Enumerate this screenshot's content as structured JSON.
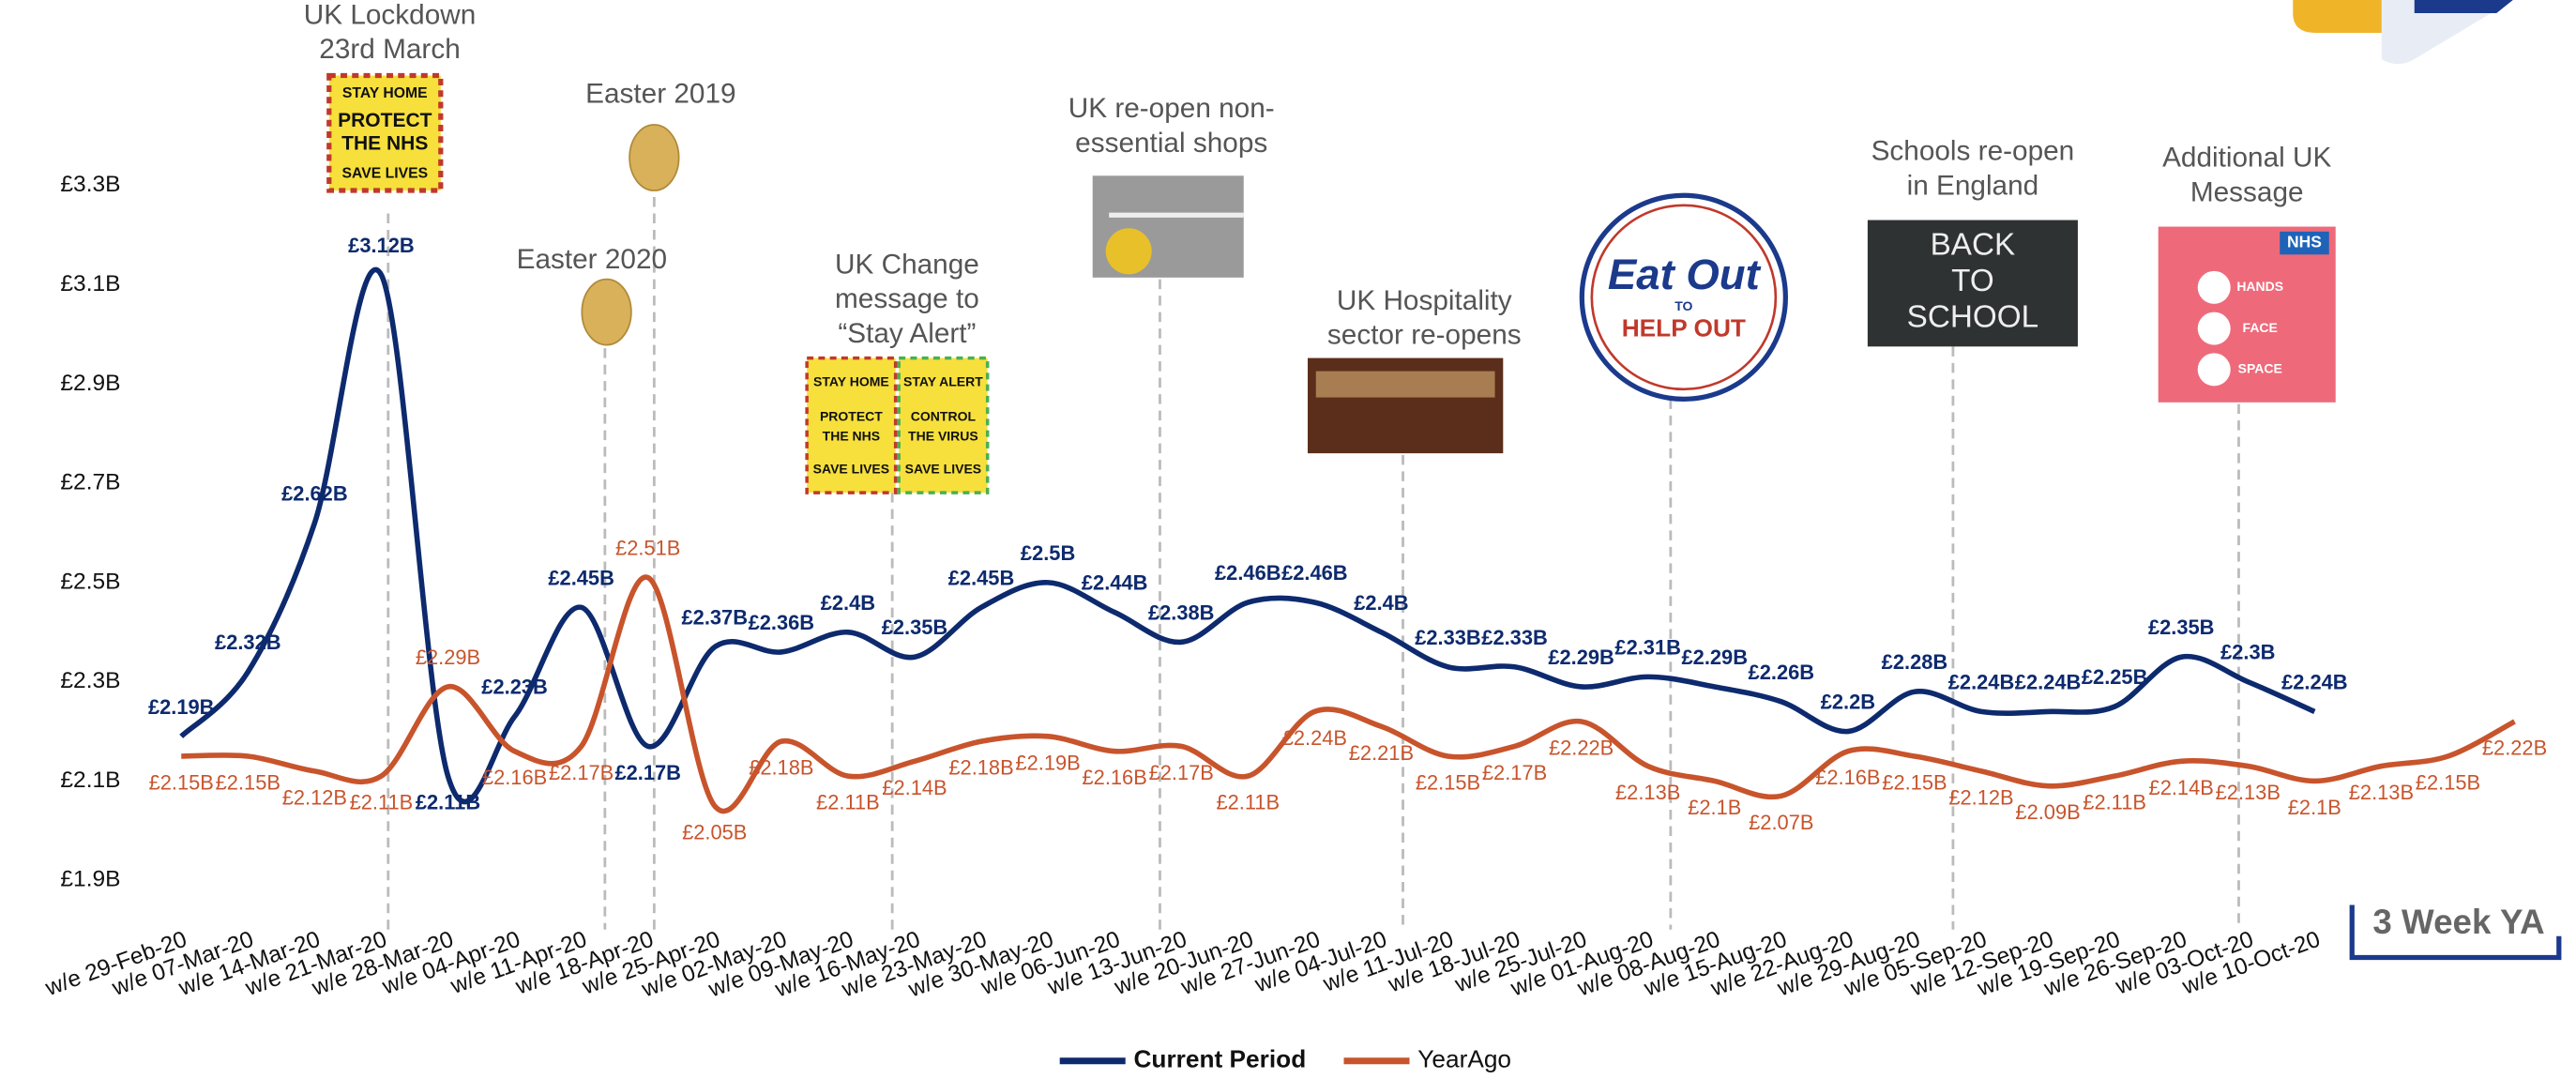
{
  "chart_data": {
    "type": "line",
    "categories": [
      "w/e 29-Feb-20",
      "w/e 07-Mar-20",
      "w/e 14-Mar-20",
      "w/e 21-Mar-20",
      "w/e 28-Mar-20",
      "w/e 04-Apr-20",
      "w/e 11-Apr-20",
      "w/e 18-Apr-20",
      "w/e 25-Apr-20",
      "w/e 02-May-20",
      "w/e 09-May-20",
      "w/e 16-May-20",
      "w/e 23-May-20",
      "w/e 30-May-20",
      "w/e 06-Jun-20",
      "w/e 13-Jun-20",
      "w/e 20-Jun-20",
      "w/e 27-Jun-20",
      "w/e 04-Jul-20",
      "w/e 11-Jul-20",
      "w/e 18-Jul-20",
      "w/e 25-Jul-20",
      "w/e 01-Aug-20",
      "w/e 08-Aug-20",
      "w/e 15-Aug-20",
      "w/e 22-Aug-20",
      "w/e 29-Aug-20",
      "w/e 05-Sep-20",
      "w/e 12-Sep-20",
      "w/e 19-Sep-20",
      "w/e 26-Sep-20",
      "w/e 03-Oct-20",
      "w/e 10-Oct-20",
      null,
      null,
      null
    ],
    "series": [
      {
        "name": "Current Period",
        "color": "#0d2a6e",
        "values": [
          2.19,
          2.32,
          2.62,
          3.12,
          2.11,
          2.23,
          2.45,
          2.17,
          2.37,
          2.36,
          2.4,
          2.35,
          2.45,
          2.5,
          2.44,
          2.38,
          2.46,
          2.46,
          2.4,
          2.33,
          2.33,
          2.29,
          2.31,
          2.29,
          2.26,
          2.2,
          2.28,
          2.24,
          2.24,
          2.25,
          2.35,
          2.3,
          2.24,
          null,
          null,
          null
        ],
        "value_labels": [
          "£2.19B",
          "£2.32B",
          "£2.62B",
          "£3.12B",
          "£2.11B",
          "£2.23B",
          "£2.45B",
          "£2.17B",
          "£2.37B",
          "£2.36B",
          "£2.4B",
          "£2.35B",
          "£2.45B",
          "£2.5B",
          "£2.44B",
          "£2.38B",
          "£2.46B",
          "£2.46B",
          "£2.4B",
          "£2.33B",
          "£2.33B",
          "£2.29B",
          "£2.31B",
          "£2.29B",
          "£2.26B",
          "£2.2B",
          "£2.28B",
          "£2.24B",
          "£2.24B",
          "£2.25B",
          "£2.35B",
          "£2.3B",
          "£2.24B",
          null,
          null,
          null
        ]
      },
      {
        "name": "YearAgo",
        "color": "#c8542c",
        "values": [
          2.15,
          2.15,
          2.12,
          2.11,
          2.29,
          2.16,
          2.17,
          2.51,
          2.05,
          2.18,
          2.11,
          2.14,
          2.18,
          2.19,
          2.16,
          2.17,
          2.11,
          2.24,
          2.21,
          2.15,
          2.17,
          2.22,
          2.13,
          2.1,
          2.07,
          2.16,
          2.15,
          2.12,
          2.09,
          2.11,
          2.14,
          2.13,
          2.1,
          2.13,
          2.15,
          2.22
        ],
        "value_labels": [
          "£2.15B",
          "£2.15B",
          "£2.12B",
          "£2.11B",
          "£2.29B",
          "£2.16B",
          "£2.17B",
          "£2.51B",
          "£2.05B",
          "£2.18B",
          "£2.11B",
          "£2.14B",
          "£2.18B",
          "£2.19B",
          "£2.16B",
          "£2.17B",
          "£2.11B",
          "£2.24B",
          "£2.21B",
          "£2.15B",
          "£2.17B",
          "£2.22B",
          "£2.13B",
          "£2.1B",
          "£2.07B",
          "£2.16B",
          "£2.15B",
          "£2.12B",
          "£2.09B",
          "£2.11B",
          "£2.14B",
          "£2.13B",
          "£2.1B",
          "£2.13B",
          "£2.15B",
          "£2.22B"
        ]
      }
    ],
    "ylim": [
      1.9,
      3.3
    ],
    "yticks": [
      {
        "value": 1.9,
        "label": "£1.9B"
      },
      {
        "value": 2.1,
        "label": "£2.1B"
      },
      {
        "value": 2.3,
        "label": "£2.3B"
      },
      {
        "value": 2.5,
        "label": "£2.5B"
      },
      {
        "value": 2.7,
        "label": "£2.7B"
      },
      {
        "value": 2.9,
        "label": "£2.9B"
      },
      {
        "value": 3.1,
        "label": "£3.1B"
      },
      {
        "value": 3.3,
        "label": "£3.3B"
      }
    ],
    "grid": false,
    "legend": "bottom",
    "badge": "3 Week YA",
    "annotations": [
      {
        "lines": [
          "UK Lockdown",
          "23rd March"
        ],
        "sign_text": [
          "STAY HOME",
          "PROTECT",
          "THE NHS",
          "SAVE LIVES"
        ]
      },
      {
        "lines": [
          "Easter 2019"
        ]
      },
      {
        "lines": [
          "Easter 2020"
        ]
      },
      {
        "lines": [
          "UK Change",
          "message to",
          "“Stay Alert”"
        ],
        "sign_text": [
          "STAY HOME",
          "PROTECT",
          "THE NHS",
          "SAVE LIVES",
          "STAY ALERT",
          "CONTROL",
          "THE VIRUS",
          "SAVE LIVES"
        ]
      },
      {
        "lines": [
          "UK re-open non-",
          "essential shops"
        ]
      },
      {
        "lines": [
          "UK Hospitality",
          "sector re-opens"
        ]
      },
      {
        "sign_text": [
          "Eat Out",
          "TO",
          "HELP OUT"
        ]
      },
      {
        "lines": [
          "Schools re-open",
          "in England"
        ],
        "sign_text": [
          "BACK",
          "TO",
          "SCHOOL"
        ]
      },
      {
        "lines": [
          "Additional UK",
          "Message"
        ],
        "sign_text": [
          "NHS",
          "HANDS",
          "FACE",
          "SPACE"
        ]
      }
    ]
  }
}
